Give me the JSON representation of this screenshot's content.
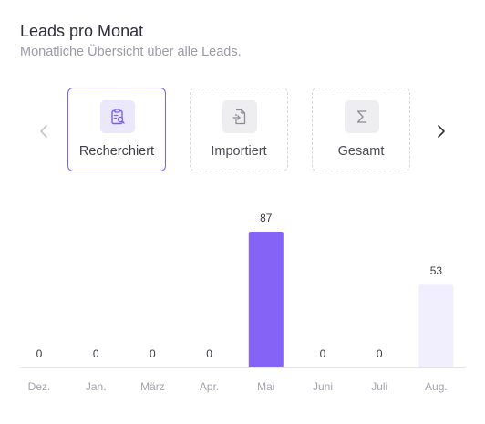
{
  "header": {
    "title": "Leads pro Monat",
    "subtitle": "Monatliche Übersicht über alle Leads."
  },
  "tabs": [
    {
      "label": "Recherchiert",
      "icon": "clipboard-search-icon",
      "selected": true
    },
    {
      "label": "Importiert",
      "icon": "file-import-icon",
      "selected": false
    },
    {
      "label": "Gesamt",
      "icon": "sigma-icon",
      "selected": false
    }
  ],
  "colors": {
    "accent": "#8463f6",
    "bar_light": "#f1effd",
    "axis": "#e2e2e6"
  },
  "chart_data": {
    "type": "bar",
    "categories": [
      "Dez.",
      "Jan.",
      "März",
      "Apr.",
      "Mai",
      "Juni",
      "Juli",
      "Aug."
    ],
    "series": [
      {
        "values": [
          0,
          0,
          0,
          0,
          87,
          0,
          0,
          53
        ]
      }
    ],
    "highlighted_index": 4,
    "title": "",
    "xlabel": "",
    "ylabel": "",
    "ylim": [
      0,
      87
    ],
    "grid": false,
    "data_labels": true
  }
}
